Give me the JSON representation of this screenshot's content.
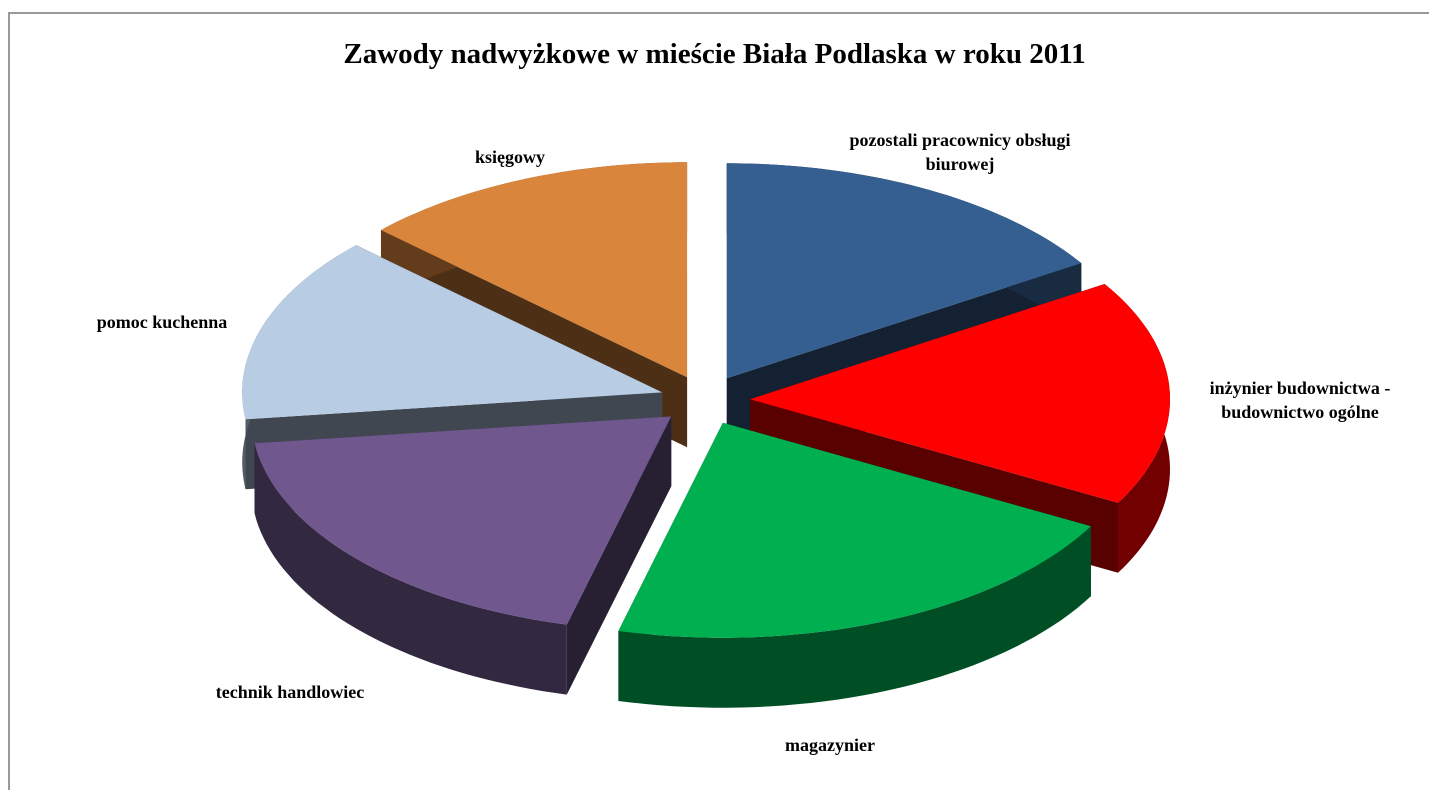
{
  "chart_data": {
    "type": "pie",
    "title": "Zawody nadwyżkowe w mieście Biała Podlaska w roku 2011",
    "categories": [
      "pozostali pracownicy obsługi biurowej",
      "inżynier budownictwa - budownictwo ogólne",
      "magazynier",
      "technik handlowiec",
      "pomoc kuchenna",
      "księgowy"
    ],
    "values": [
      16,
      17,
      21,
      19,
      14,
      13
    ],
    "colors": [
      "#355f91",
      "#ff0000",
      "#00b050",
      "#70588f",
      "#b8cce4",
      "#d9853b"
    ],
    "legend": false
  }
}
